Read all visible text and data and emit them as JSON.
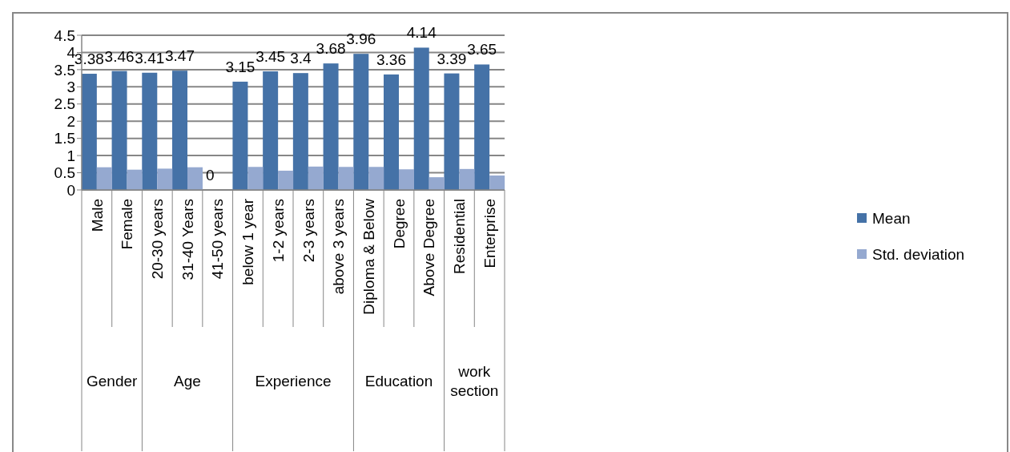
{
  "chart_data": {
    "type": "bar",
    "categories": [
      "Male",
      "Female",
      "20-30 years",
      "31-40 Years",
      "41-50 years",
      "below 1 year",
      "1-2 years",
      "2-3 years",
      "above 3 years",
      "Diploma & Below",
      "Degree",
      "Above Degree",
      "Residential",
      "Enterprise"
    ],
    "series": [
      {
        "name": "Mean",
        "color": "#4572a7",
        "values": [
          3.38,
          3.46,
          3.41,
          3.47,
          0,
          3.15,
          3.45,
          3.4,
          3.68,
          3.96,
          3.36,
          4.14,
          3.39,
          3.65
        ],
        "value_labels": [
          "3.38",
          "3.46",
          "3.41",
          "3.47",
          "0",
          "3.15",
          "3.45",
          "3.4",
          "3.68",
          "3.96",
          "3.36",
          "4.14",
          "3.39",
          "3.65"
        ]
      },
      {
        "name": "Std. deviation",
        "color": "#95a9d0",
        "values": [
          0.66,
          0.59,
          0.62,
          0.66,
          null,
          0.67,
          0.56,
          0.68,
          0.67,
          0.67,
          0.6,
          0.37,
          0.61,
          0.42
        ]
      }
    ],
    "annotations": [
      "Gender",
      "Age",
      "Experience",
      "Education",
      "work section"
    ],
    "ylim": [
      0,
      4.5
    ],
    "yticks": [
      0,
      0.5,
      1,
      1.5,
      2,
      2.5,
      3,
      3.5,
      4,
      4.5
    ],
    "grid": "y",
    "legend": "right"
  }
}
